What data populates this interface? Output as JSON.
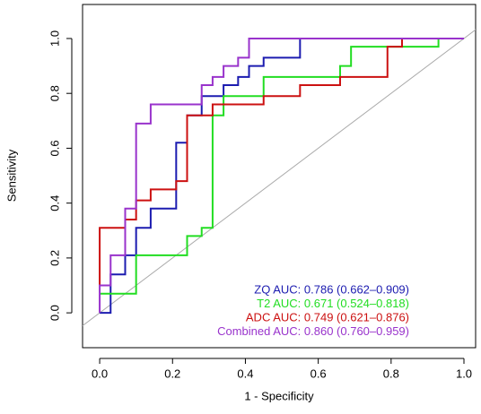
{
  "chart_data": {
    "type": "line",
    "x_label": "1 - Specificity",
    "y_label": "Sensitivity",
    "xlim": [
      -0.047,
      1.032
    ],
    "ylim": [
      -0.127,
      1.124
    ],
    "xticks": [
      {
        "value": 0,
        "label": "0.0"
      },
      0.2,
      0.4,
      0.6,
      0.8,
      {
        "value": 1,
        "label": "1.0"
      }
    ],
    "yticks": [
      {
        "value": 0,
        "label": "0.0"
      },
      0.2,
      0.4,
      0.6,
      0.8,
      {
        "value": 1,
        "label": "1.0"
      }
    ],
    "series": [
      {
        "name": "ZQ AUC: 0.786 (0.662–0.909)",
        "color": "#1c1cb0",
        "x": [
          0,
          0.03,
          0.03,
          0.07,
          0.07,
          0.1,
          0.1,
          0.14,
          0.14,
          0.21,
          0.21,
          0.24,
          0.24,
          0.28,
          0.28,
          0.34,
          0.34,
          0.38,
          0.38,
          0.41,
          0.41,
          0.45,
          0.45,
          0.55,
          0.55,
          1
        ],
        "values": [
          0,
          0,
          0.14,
          0.14,
          0.21,
          0.21,
          0.31,
          0.31,
          0.38,
          0.38,
          0.62,
          0.62,
          0.72,
          0.72,
          0.79,
          0.79,
          0.83,
          0.83,
          0.86,
          0.86,
          0.9,
          0.9,
          0.93,
          0.93,
          1,
          1
        ]
      },
      {
        "name": "T2 AUC: 0.671 (0.524–0.818)",
        "color": "#22dd22",
        "x": [
          0,
          0.1,
          0.1,
          0.24,
          0.24,
          0.28,
          0.28,
          0.31,
          0.31,
          0.34,
          0.34,
          0.45,
          0.45,
          0.66,
          0.66,
          0.69,
          0.69,
          0.93,
          0.93,
          1
        ],
        "values": [
          0.07,
          0.07,
          0.21,
          0.21,
          0.28,
          0.28,
          0.31,
          0.31,
          0.72,
          0.72,
          0.79,
          0.79,
          0.86,
          0.86,
          0.9,
          0.9,
          0.97,
          0.97,
          1,
          1
        ]
      },
      {
        "name": "ADC AUC: 0.749 (0.621–0.876)",
        "color": "#cc1111",
        "x": [
          0,
          0,
          0.07,
          0.07,
          0.1,
          0.1,
          0.14,
          0.14,
          0.21,
          0.21,
          0.24,
          0.24,
          0.31,
          0.31,
          0.45,
          0.45,
          0.55,
          0.55,
          0.66,
          0.66,
          0.79,
          0.79,
          0.83,
          0.83,
          1
        ],
        "values": [
          0.1,
          0.31,
          0.31,
          0.34,
          0.34,
          0.41,
          0.41,
          0.45,
          0.45,
          0.48,
          0.48,
          0.72,
          0.72,
          0.76,
          0.76,
          0.79,
          0.79,
          0.83,
          0.83,
          0.86,
          0.86,
          0.97,
          0.97,
          1,
          1
        ]
      },
      {
        "name": "Combined AUC: 0.860 (0.760–0.959)",
        "color": "#9933cc",
        "x": [
          0,
          0,
          0.03,
          0.03,
          0.07,
          0.07,
          0.1,
          0.1,
          0.14,
          0.14,
          0.28,
          0.28,
          0.31,
          0.31,
          0.34,
          0.34,
          0.38,
          0.38,
          0.41,
          0.41,
          1
        ],
        "values": [
          0,
          0.1,
          0.1,
          0.21,
          0.21,
          0.38,
          0.38,
          0.69,
          0.69,
          0.76,
          0.76,
          0.83,
          0.83,
          0.86,
          0.86,
          0.9,
          0.9,
          0.93,
          0.93,
          1,
          1
        ]
      }
    ]
  }
}
